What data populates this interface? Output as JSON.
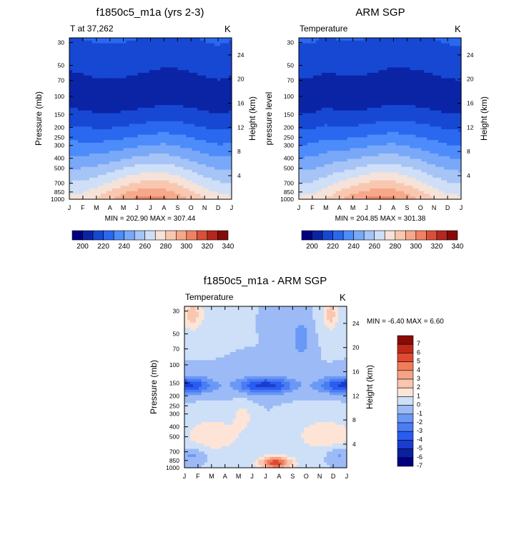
{
  "palette": {
    "blue_red": [
      "#000080",
      "#0b24a6",
      "#1748d4",
      "#2a68f0",
      "#4d8cfa",
      "#7aa8f8",
      "#a6c4f6",
      "#cfdff7",
      "#f5e2d8",
      "#f9c7b0",
      "#f6a88a",
      "#ef8262",
      "#d9503a",
      "#b5271f",
      "#840b0a"
    ],
    "diff": [
      "#000080",
      "#0b20a0",
      "#1a3cd0",
      "#2a5cf0",
      "#4a7cf4",
      "#6a98f6",
      "#9cbaf6",
      "#cde0f8",
      "#fde4d6",
      "#f9c6b0",
      "#f5a286",
      "#ef7c5a",
      "#e14a30",
      "#c0281a",
      "#8a0a08"
    ]
  },
  "chart_data": [
    {
      "type": "heatmap",
      "title": "f1850c5_m1a (yrs 2-3)",
      "left_label": "T at 37,262",
      "right_label": "K",
      "ylabel": "Pressure (mb)",
      "y2label": "Height (km)",
      "xlabel": "",
      "x_ticks": [
        "J",
        "F",
        "M",
        "A",
        "M",
        "J",
        "J",
        "A",
        "S",
        "O",
        "N",
        "D",
        "J"
      ],
      "y_ticks": [
        30,
        50,
        70,
        100,
        150,
        200,
        250,
        300,
        400,
        500,
        700,
        850,
        1000
      ],
      "y2_ticks": [
        24,
        20,
        16,
        12,
        8,
        4
      ],
      "stats": "MIN = 202.90 MAX = 307.44",
      "colorbar_labels": [
        "200",
        "220",
        "240",
        "260",
        "280",
        "300",
        "320",
        "340"
      ],
      "contour_levels": [
        195,
        200,
        210,
        220,
        230,
        240,
        250,
        260,
        270,
        280,
        290,
        300,
        310,
        320,
        330,
        340
      ],
      "seasonal_amp": [
        -0.2,
        0.1,
        0.4,
        0.5,
        0.35,
        0.1,
        -0.15,
        -0.45,
        -0.4,
        -0.1,
        0.25,
        0.6,
        0.2
      ],
      "surface_amp": [
        -1,
        -0.85,
        -0.5,
        0,
        0.5,
        0.85,
        1,
        0.9,
        0.5,
        0,
        -0.5,
        -0.85,
        -1
      ]
    },
    {
      "type": "heatmap",
      "title": "ARM SGP",
      "left_label": "Temperature",
      "right_label": "K",
      "ylabel": "pressure level",
      "y2label": "Height (km)",
      "xlabel": "",
      "x_ticks": [
        "J",
        "F",
        "M",
        "A",
        "M",
        "J",
        "J",
        "A",
        "S",
        "O",
        "N",
        "D",
        "J"
      ],
      "y_ticks": [
        30,
        50,
        70,
        100,
        150,
        200,
        250,
        300,
        400,
        500,
        700,
        850,
        1000
      ],
      "y2_ticks": [
        24,
        20,
        16,
        12,
        8,
        4
      ],
      "stats": "MIN = 204.85 MAX = 301.38",
      "colorbar_labels": [
        "200",
        "220",
        "240",
        "260",
        "280",
        "300",
        "320",
        "340"
      ],
      "contour_levels": [
        195,
        200,
        210,
        220,
        230,
        240,
        250,
        260,
        270,
        280,
        290,
        300,
        310,
        320,
        330,
        340
      ],
      "seasonal_amp": [
        0.5,
        0.4,
        -0.1,
        0.2,
        0.3,
        0.1,
        -0.2,
        -0.5,
        -0.4,
        -0.2,
        0.1,
        0.5,
        0.6
      ],
      "surface_amp": [
        -1,
        -0.9,
        -0.55,
        0,
        0.45,
        0.8,
        1,
        0.85,
        0.45,
        0,
        -0.5,
        -0.9,
        -1
      ]
    },
    {
      "type": "heatmap",
      "title": "f1850c5_m1a - ARM SGP",
      "left_label": "Temperature",
      "right_label": "K",
      "ylabel": "Pressure (mb)",
      "y2label": "Height (km)",
      "xlabel": "",
      "x_ticks": [
        "J",
        "F",
        "M",
        "A",
        "M",
        "J",
        "J",
        "A",
        "S",
        "O",
        "N",
        "D",
        "J"
      ],
      "y_ticks": [
        30,
        50,
        70,
        100,
        150,
        200,
        250,
        300,
        400,
        500,
        700,
        850,
        1000
      ],
      "y2_ticks": [
        24,
        20,
        16,
        12,
        8,
        4
      ],
      "stats": "MIN =  -6.40 MAX =   6.60",
      "colorbar_labels": [
        "7",
        "6",
        "5",
        "4",
        "3",
        "2",
        "1",
        "0",
        "-1",
        "-2",
        "-3",
        "-4",
        "-5",
        "-6",
        "-7"
      ],
      "contour_levels": [
        -7,
        -6,
        -5,
        -4,
        -3,
        -2,
        -1,
        0,
        1,
        2,
        3,
        4,
        5,
        6,
        7
      ]
    }
  ]
}
